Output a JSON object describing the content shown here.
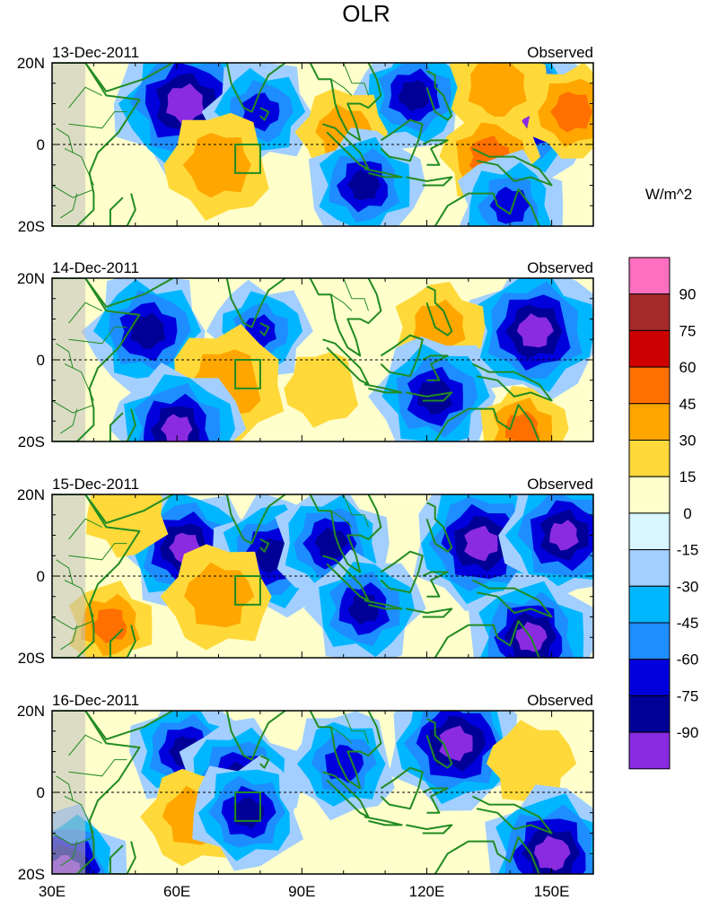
{
  "chart_data": {
    "type": "heatmap",
    "title": "OLR",
    "units": "W/m^2",
    "x_ticks": [
      "30E",
      "60E",
      "90E",
      "120E",
      "150E"
    ],
    "x_tick_values": [
      30,
      60,
      90,
      120,
      150
    ],
    "y_ticks": [
      "20N",
      "0",
      "20S"
    ],
    "y_tick_values": [
      20,
      0,
      -20
    ],
    "xlim": [
      30,
      160
    ],
    "ylim": [
      -20,
      20
    ],
    "box_region": {
      "lon": [
        74,
        80
      ],
      "lat": [
        -7,
        0
      ]
    },
    "colorbar": {
      "labels": [
        "90",
        "75",
        "60",
        "45",
        "30",
        "15",
        "0",
        "-15",
        "-30",
        "-45",
        "-60",
        "-75",
        "-90"
      ],
      "colors": [
        "#ff6fc0",
        "#a52a2a",
        "#cc0000",
        "#ff7000",
        "#ffa700",
        "#ffd93a",
        "#ffffcc",
        "#d7f6ff",
        "#a2cfff",
        "#00b7ff",
        "#1e8dff",
        "#0000dd",
        "#000096",
        "#8a2be2"
      ]
    },
    "panels": [
      {
        "date": "13-Dec-2011",
        "label": "Observed",
        "features": [
          {
            "lon": 62,
            "lat": 10,
            "value": -90,
            "r": 5
          },
          {
            "lon": 80,
            "lat": 8,
            "value": -60,
            "r": 4
          },
          {
            "lon": 117,
            "lat": 12,
            "value": -75,
            "r": 3
          },
          {
            "lon": 145,
            "lat": 8,
            "value": -90,
            "r": 4
          },
          {
            "lon": 137,
            "lat": 14,
            "value": 30,
            "r": 6
          },
          {
            "lon": 155,
            "lat": 8,
            "value": 45,
            "r": 4
          },
          {
            "lon": 70,
            "lat": -5,
            "value": 30,
            "r": 7
          },
          {
            "lon": 100,
            "lat": 3,
            "value": 30,
            "r": 5
          },
          {
            "lon": 135,
            "lat": -3,
            "value": 45,
            "r": 4
          },
          {
            "lon": 105,
            "lat": -10,
            "value": -75,
            "r": 3
          },
          {
            "lon": 140,
            "lat": -15,
            "value": -60,
            "r": 4
          }
        ]
      },
      {
        "date": "14-Dec-2011",
        "label": "Observed",
        "features": [
          {
            "lon": 53,
            "lat": 7,
            "value": -75,
            "r": 4
          },
          {
            "lon": 80,
            "lat": 7,
            "value": -60,
            "r": 3
          },
          {
            "lon": 146,
            "lat": 7,
            "value": -90,
            "r": 4
          },
          {
            "lon": 123,
            "lat": 8,
            "value": 30,
            "r": 5
          },
          {
            "lon": 72,
            "lat": -6,
            "value": 30,
            "r": 8
          },
          {
            "lon": 95,
            "lat": -7,
            "value": 15,
            "r": 5
          },
          {
            "lon": 122,
            "lat": -9,
            "value": -75,
            "r": 4
          },
          {
            "lon": 60,
            "lat": -17,
            "value": -90,
            "r": 3
          },
          {
            "lon": 143,
            "lat": -17,
            "value": 45,
            "r": 3
          }
        ]
      },
      {
        "date": "15-Dec-2011",
        "label": "Observed",
        "features": [
          {
            "lon": 62,
            "lat": 7,
            "value": -90,
            "r": 3
          },
          {
            "lon": 83,
            "lat": 5,
            "value": -75,
            "r": 4
          },
          {
            "lon": 97,
            "lat": 8,
            "value": -75,
            "r": 3
          },
          {
            "lon": 133,
            "lat": 8,
            "value": -90,
            "r": 4
          },
          {
            "lon": 153,
            "lat": 10,
            "value": -90,
            "r": 3
          },
          {
            "lon": 70,
            "lat": -5,
            "value": 30,
            "r": 7
          },
          {
            "lon": 105,
            "lat": -8,
            "value": -75,
            "r": 3
          },
          {
            "lon": 145,
            "lat": -15,
            "value": -90,
            "r": 3
          },
          {
            "lon": 44,
            "lat": -12,
            "value": 45,
            "r": 3
          },
          {
            "lon": 48,
            "lat": 15,
            "value": 15,
            "r": 6
          }
        ]
      },
      {
        "date": "16-Dec-2011",
        "label": "Observed",
        "features": [
          {
            "lon": 62,
            "lat": 10,
            "value": -75,
            "r": 3
          },
          {
            "lon": 75,
            "lat": 3,
            "value": -75,
            "r": 4
          },
          {
            "lon": 127,
            "lat": 12,
            "value": -90,
            "r": 4
          },
          {
            "lon": 100,
            "lat": 7,
            "value": -60,
            "r": 4
          },
          {
            "lon": 64,
            "lat": -6,
            "value": 30,
            "r": 6
          },
          {
            "lon": 145,
            "lat": 7,
            "value": 15,
            "r": 6
          },
          {
            "lon": 150,
            "lat": -15,
            "value": -90,
            "r": 4
          },
          {
            "lon": 33,
            "lat": -19,
            "value": -90,
            "r": 3
          },
          {
            "lon": 77,
            "lat": -5,
            "value": -75,
            "r": 3
          }
        ]
      }
    ]
  }
}
